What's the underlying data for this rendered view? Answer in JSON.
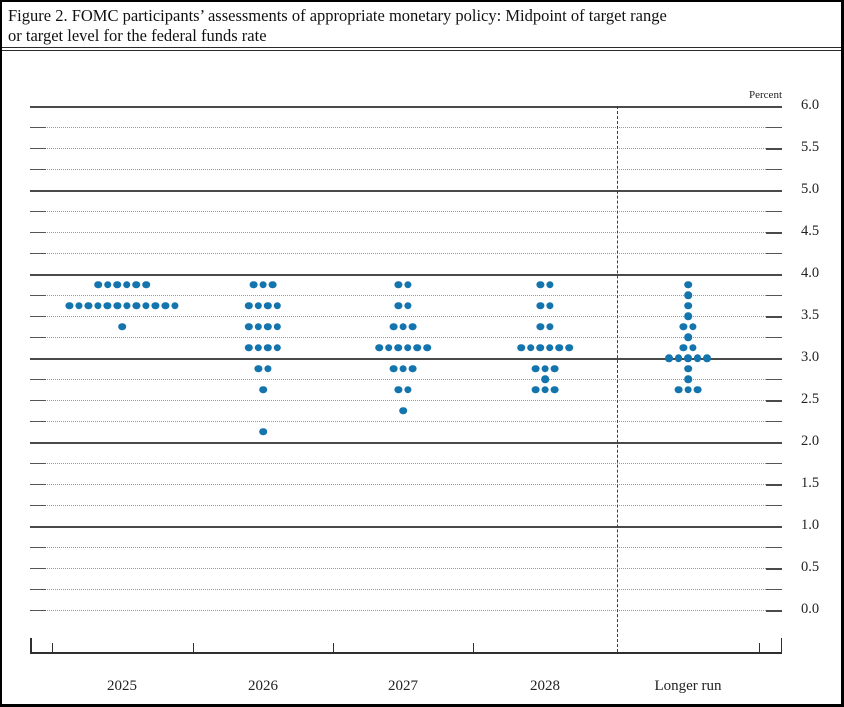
{
  "figure": {
    "title_line1": "Figure 2. FOMC participants’ assessments of appropriate monetary policy: Midpoint of target range",
    "title_line2": "or target level for the federal funds rate"
  },
  "chart_data": {
    "type": "scatter",
    "subtype": "fomc-dot-plot",
    "title": "FOMC participants’ assessments of appropriate monetary policy: Midpoint of target range or target level for the federal funds rate",
    "unit_label": "Percent",
    "ylabel": "Percent",
    "xlabel": "",
    "ylim": [
      0.0,
      6.0
    ],
    "gridline_step": 0.25,
    "labeled_tick_step": 0.5,
    "solid_gridlines_at": [
      1.0,
      2.0,
      3.0,
      4.0,
      5.0,
      6.0
    ],
    "grid": true,
    "legend_position": "none",
    "y_tick_labels": [
      "6.0",
      "5.5",
      "5.0",
      "4.5",
      "4.0",
      "3.5",
      "3.0",
      "2.5",
      "2.0",
      "1.5",
      "1.0",
      "0.5",
      "0.0"
    ],
    "categories": [
      "2025",
      "2026",
      "2027",
      "2028",
      "Longer run"
    ],
    "separator_before_category": "Longer run",
    "dot_color": "#1374ae",
    "participants_per_year": 19,
    "series": [
      {
        "name": "2025",
        "dots": [
          {
            "rate": 3.875,
            "count": 6
          },
          {
            "rate": 3.625,
            "count": 12
          },
          {
            "rate": 3.375,
            "count": 1
          }
        ]
      },
      {
        "name": "2026",
        "dots": [
          {
            "rate": 3.875,
            "count": 3
          },
          {
            "rate": 3.625,
            "count": 4
          },
          {
            "rate": 3.375,
            "count": 4
          },
          {
            "rate": 3.125,
            "count": 4
          },
          {
            "rate": 2.875,
            "count": 2
          },
          {
            "rate": 2.625,
            "count": 1
          },
          {
            "rate": 2.125,
            "count": 1
          }
        ]
      },
      {
        "name": "2027",
        "dots": [
          {
            "rate": 3.875,
            "count": 2
          },
          {
            "rate": 3.625,
            "count": 2
          },
          {
            "rate": 3.375,
            "count": 3
          },
          {
            "rate": 3.125,
            "count": 6
          },
          {
            "rate": 2.875,
            "count": 3
          },
          {
            "rate": 2.625,
            "count": 2
          },
          {
            "rate": 2.375,
            "count": 1
          }
        ]
      },
      {
        "name": "2028",
        "dots": [
          {
            "rate": 3.875,
            "count": 2
          },
          {
            "rate": 3.625,
            "count": 2
          },
          {
            "rate": 3.375,
            "count": 2
          },
          {
            "rate": 3.125,
            "count": 6
          },
          {
            "rate": 2.875,
            "count": 3
          },
          {
            "rate": 2.75,
            "count": 1
          },
          {
            "rate": 2.625,
            "count": 3
          }
        ]
      },
      {
        "name": "Longer run",
        "dots": [
          {
            "rate": 3.875,
            "count": 1
          },
          {
            "rate": 3.75,
            "count": 1
          },
          {
            "rate": 3.625,
            "count": 1
          },
          {
            "rate": 3.5,
            "count": 1
          },
          {
            "rate": 3.375,
            "count": 2
          },
          {
            "rate": 3.25,
            "count": 1
          },
          {
            "rate": 3.125,
            "count": 2
          },
          {
            "rate": 3.0,
            "count": 5
          },
          {
            "rate": 2.875,
            "count": 1
          },
          {
            "rate": 2.75,
            "count": 1
          },
          {
            "rate": 2.625,
            "count": 3
          }
        ]
      }
    ]
  }
}
